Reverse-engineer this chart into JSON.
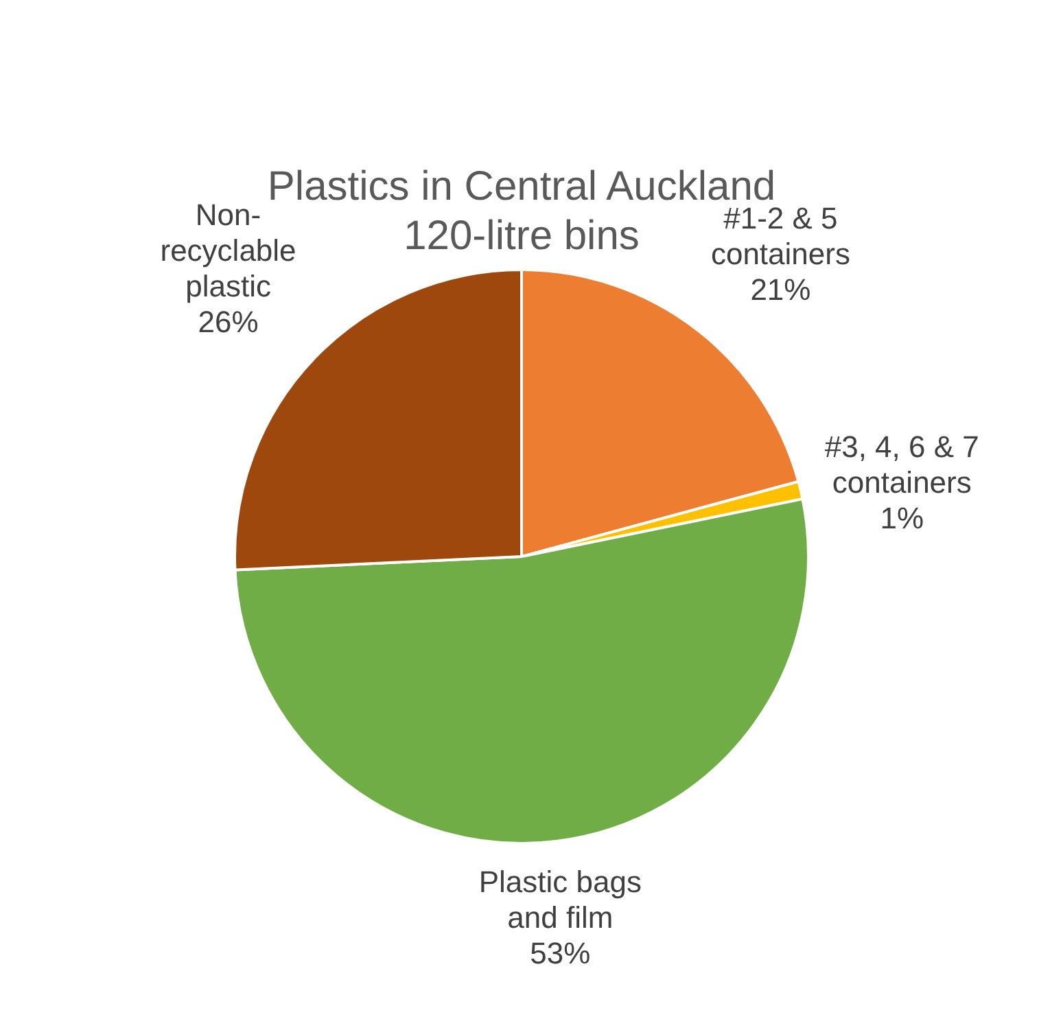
{
  "chart_data": {
    "type": "pie",
    "title": "Plastics in Central Auckland\n120-litre bins",
    "categories": [
      "#1-2 & 5 containers",
      "#3, 4, 6 & 7 containers",
      "Plastic bags and film",
      "Non-recyclable plastic"
    ],
    "values": [
      21,
      1,
      53,
      26
    ],
    "colors": [
      "#ed7d31",
      "#ffc000",
      "#70ad47",
      "#9e480e"
    ],
    "value_labels": [
      "21%",
      "1%",
      "53%",
      "26%"
    ],
    "legend": false
  }
}
